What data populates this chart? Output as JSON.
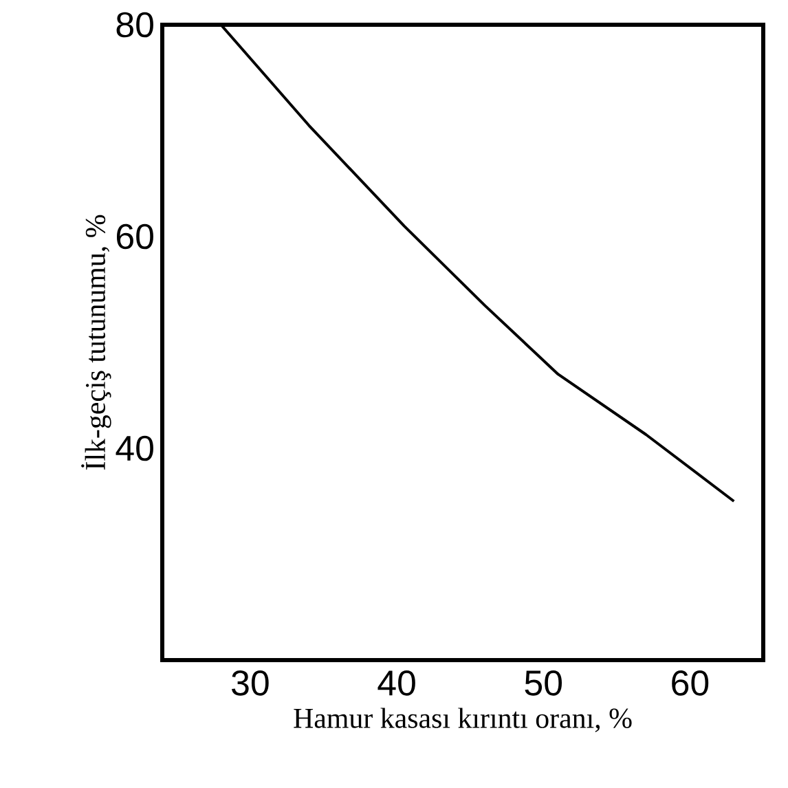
{
  "chart_data": {
    "type": "line",
    "xlabel": "Hamur kasası kırıntı oranı, %",
    "ylabel": "İlk-geçiş tutunumu, %",
    "x": [
      28,
      34,
      40.5,
      46,
      51,
      57,
      63
    ],
    "values": [
      80,
      70.5,
      61,
      53.5,
      47,
      41.3,
      35
    ],
    "color": "#000000",
    "xlim": [
      24,
      65
    ],
    "ylim": [
      20,
      80
    ],
    "xticks": [
      30,
      40,
      50,
      60
    ],
    "yticks": [
      40,
      60,
      80
    ],
    "marker": "none",
    "line_style": "solid"
  }
}
